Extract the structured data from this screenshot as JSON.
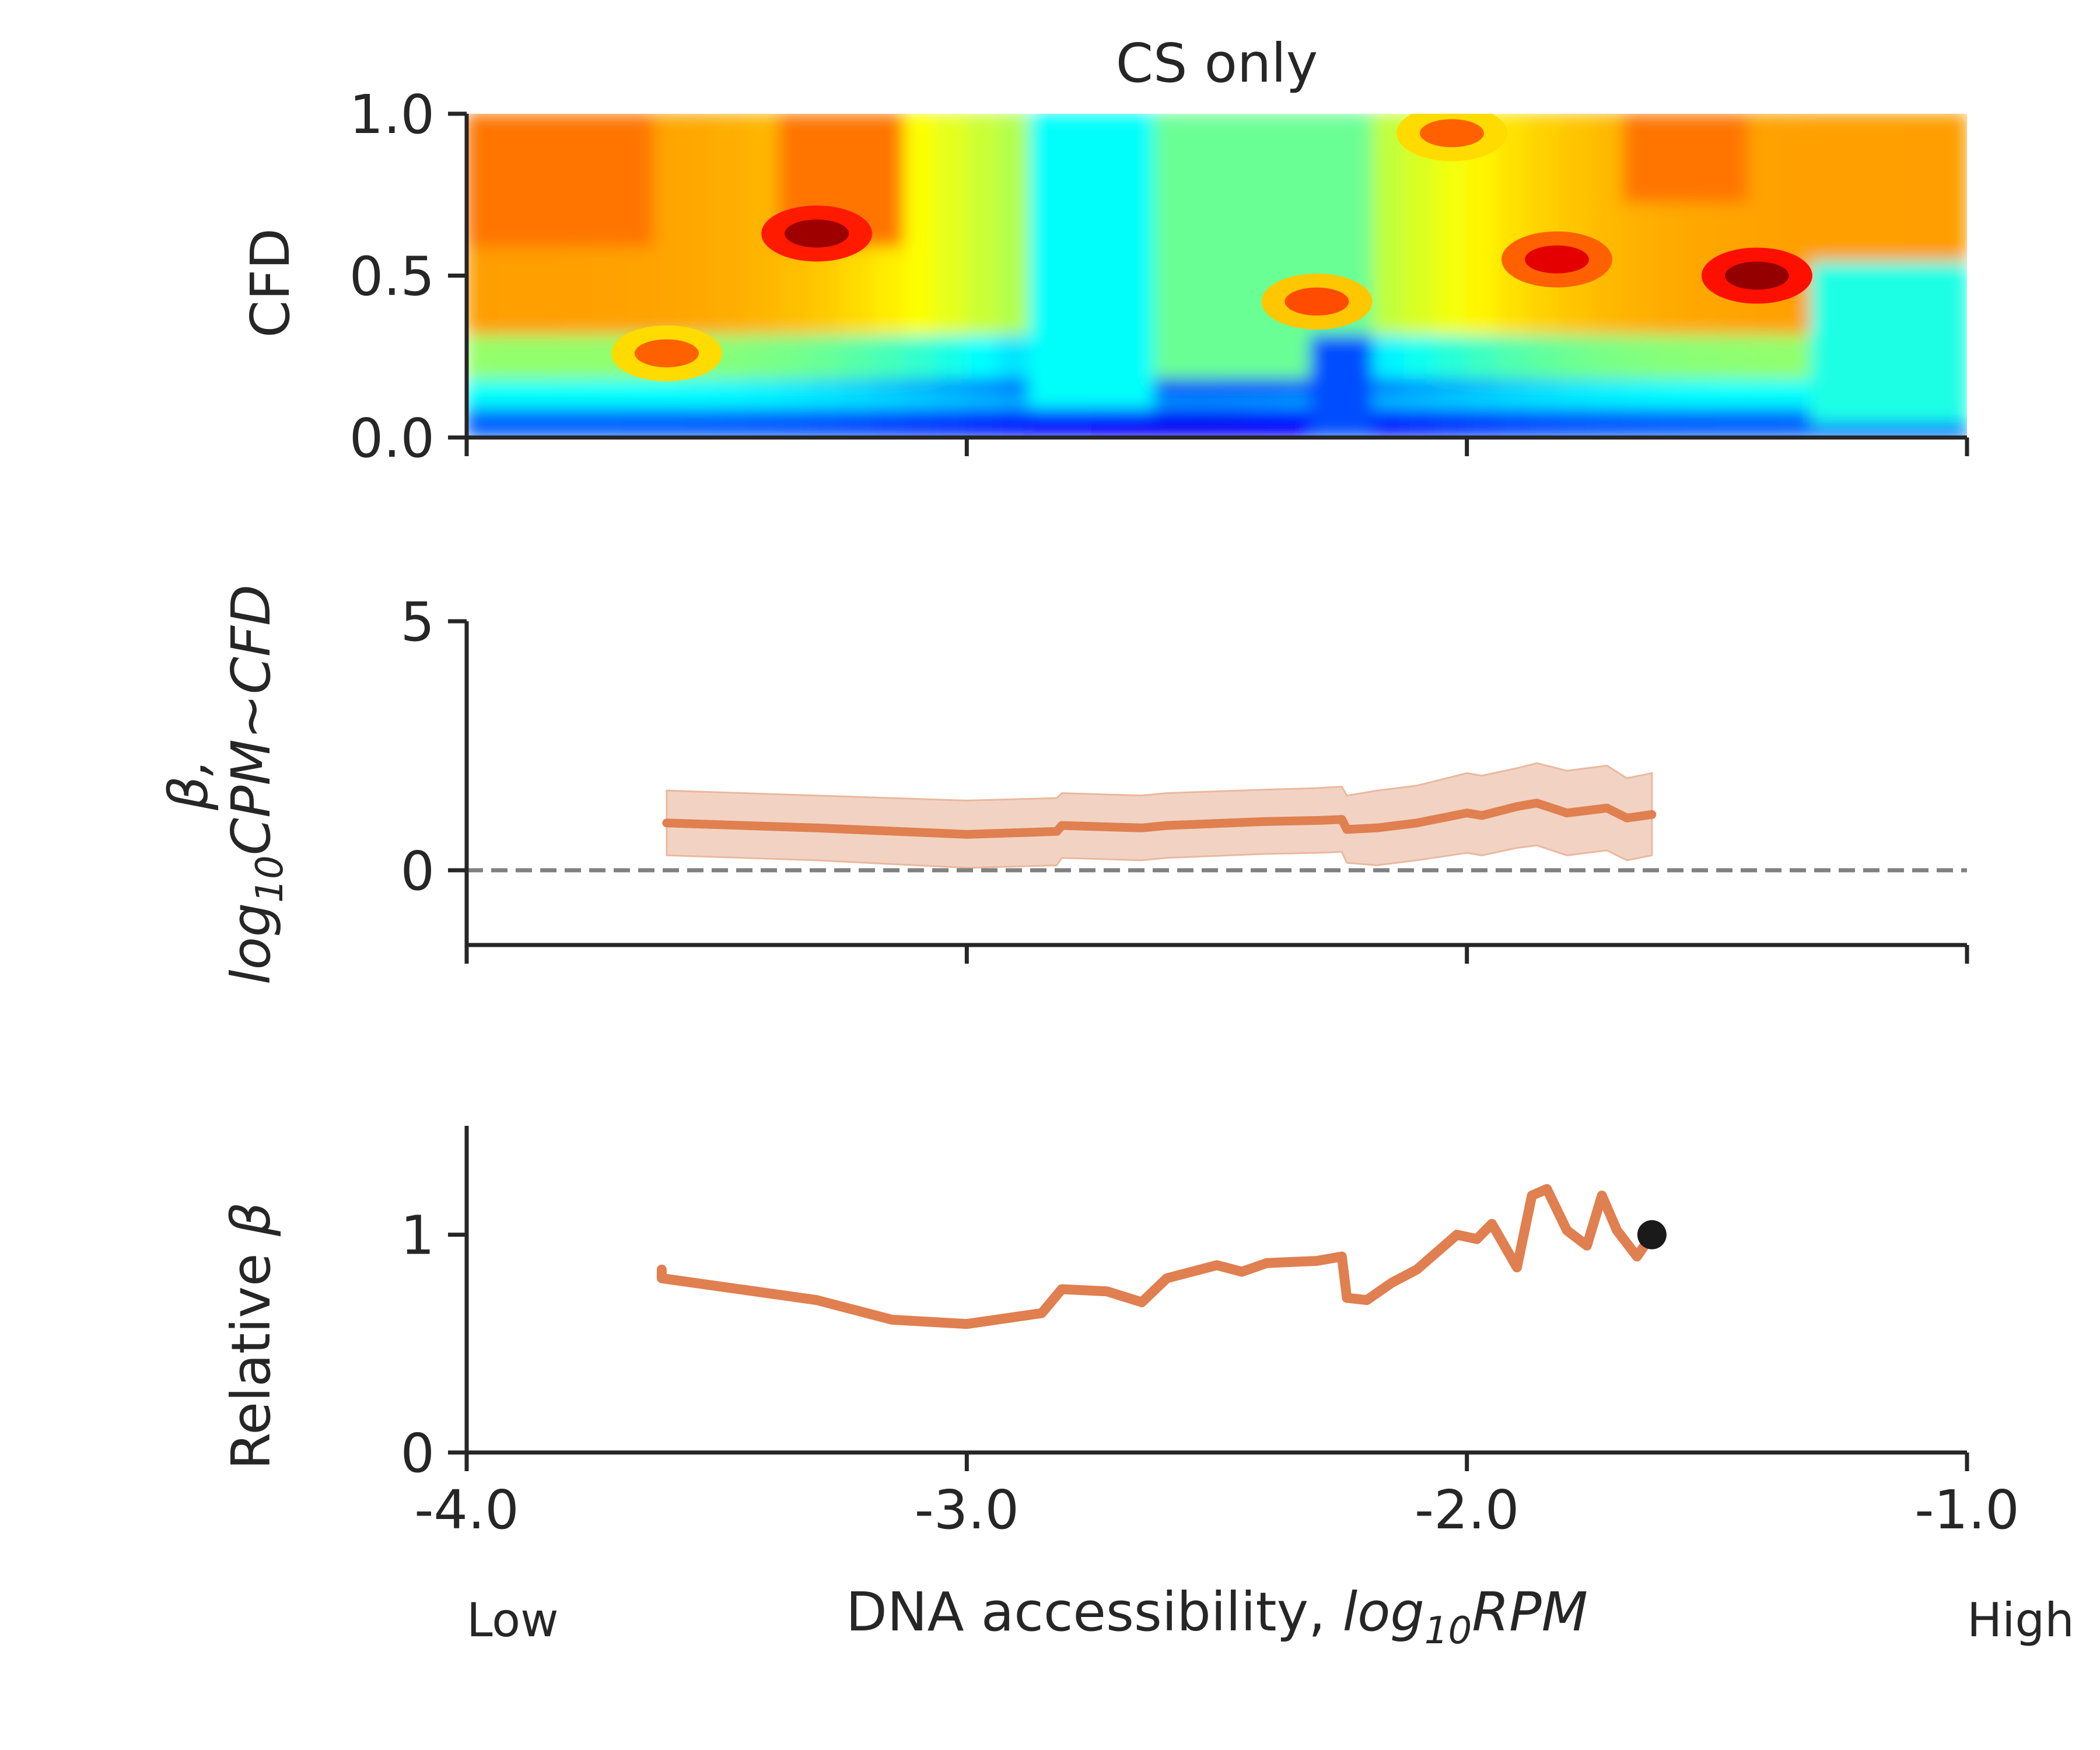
{
  "chart_data": [
    {
      "type": "heatmap",
      "title": "CS only",
      "ylabel": "CFD",
      "xlim": [
        -4.0,
        -1.0
      ],
      "ylim": [
        0.0,
        1.0
      ],
      "yticks": [
        "0.0",
        "0.5",
        "1.0"
      ],
      "colormap": "jet",
      "z_range": [
        0,
        1
      ],
      "hotspots": [
        {
          "x": -3.3,
          "y": 0.63,
          "z": 0.97
        },
        {
          "x": -2.3,
          "y": 0.42,
          "z": 0.8
        },
        {
          "x": -1.82,
          "y": 0.55,
          "z": 0.9
        },
        {
          "x": -1.42,
          "y": 0.5,
          "z": 0.98
        },
        {
          "x": -3.6,
          "y": 0.26,
          "z": 0.78
        },
        {
          "x": -2.03,
          "y": 0.94,
          "z": 0.78
        }
      ],
      "regions": [
        {
          "x": [
            -4.0,
            -3.6
          ],
          "y": [
            0.58,
            1.0
          ],
          "z": 0.76
        },
        {
          "x": [
            -3.4,
            -3.15
          ],
          "y": [
            0.58,
            1.0
          ],
          "z": 0.76
        },
        {
          "x": [
            -1.7,
            -1.45
          ],
          "y": [
            0.72,
            1.0
          ],
          "z": 0.76
        },
        {
          "x": [
            -2.65,
            -2.2
          ],
          "y": [
            0.2,
            1.0
          ],
          "z": 0.48
        },
        {
          "x": [
            -2.85,
            -2.65
          ],
          "y": [
            0.1,
            1.0
          ],
          "z": 0.38
        },
        {
          "x": [
            -1.3,
            -1.0
          ],
          "y": [
            0.05,
            0.55
          ],
          "z": 0.4
        },
        {
          "x": [
            -2.3,
            -2.2
          ],
          "y": [
            0.0,
            0.3
          ],
          "z": 0.2
        }
      ]
    },
    {
      "type": "line",
      "ylabel": "β, log10CPM~CFD",
      "ylabel_lines": [
        "β,",
        "log",
        "10",
        "CPM~CFD"
      ],
      "ylim": [
        -1.5,
        5
      ],
      "yticks": [
        "0",
        "5"
      ],
      "reference_line": {
        "y": 0,
        "style": "dashed",
        "color": "#808080"
      },
      "series": [
        {
          "color": "#e07f50",
          "band_color": "#f2d3c3",
          "x": [
            -3.6,
            -3.3,
            -3.0,
            -2.82,
            -2.81,
            -2.65,
            -2.6,
            -2.4,
            -2.3,
            -2.25,
            -2.24,
            -2.18,
            -2.1,
            -2.0,
            -1.97,
            -1.9,
            -1.86,
            -1.8,
            -1.76,
            -1.72,
            -1.68,
            -1.63
          ],
          "y": [
            0.95,
            0.85,
            0.72,
            0.78,
            0.9,
            0.85,
            0.9,
            0.98,
            1.0,
            1.02,
            0.82,
            0.85,
            0.95,
            1.15,
            1.1,
            1.28,
            1.35,
            1.15,
            1.2,
            1.25,
            1.05,
            1.12
          ],
          "lower": [
            0.3,
            0.2,
            0.05,
            0.1,
            0.25,
            0.2,
            0.25,
            0.33,
            0.35,
            0.37,
            0.15,
            0.1,
            0.2,
            0.35,
            0.3,
            0.45,
            0.5,
            0.3,
            0.35,
            0.4,
            0.2,
            0.3
          ],
          "upper": [
            1.6,
            1.5,
            1.4,
            1.45,
            1.55,
            1.5,
            1.55,
            1.62,
            1.65,
            1.68,
            1.5,
            1.6,
            1.7,
            1.95,
            1.9,
            2.05,
            2.15,
            2.0,
            2.05,
            2.1,
            1.85,
            1.95
          ]
        }
      ]
    },
    {
      "type": "line",
      "ylabel": "Relative β",
      "ylabel_parts": [
        "Relative ",
        "β"
      ],
      "xlabel": "DNA accessibility, log10RPM",
      "xlabel_parts": [
        "DNA accessibility, ",
        "log",
        "10",
        "RPM"
      ],
      "xlim": [
        -4.0,
        -1.0
      ],
      "ylim": [
        0,
        1.5
      ],
      "xticks": [
        "-4.0",
        "-3.0",
        "-2.0",
        "-1.0"
      ],
      "yticks": [
        "0",
        "1"
      ],
      "x_endpoint_labels": [
        "Low",
        "High"
      ],
      "series": [
        {
          "color": "#e07f50",
          "x": [
            -3.61,
            -3.61,
            -3.3,
            -3.15,
            -3.0,
            -2.85,
            -2.81,
            -2.72,
            -2.65,
            -2.6,
            -2.5,
            -2.45,
            -2.4,
            -2.3,
            -2.25,
            -2.24,
            -2.2,
            -2.15,
            -2.1,
            -2.02,
            -1.98,
            -1.95,
            -1.9,
            -1.87,
            -1.84,
            -1.8,
            -1.76,
            -1.73,
            -1.7,
            -1.66,
            -1.63
          ],
          "y": [
            0.84,
            0.8,
            0.7,
            0.61,
            0.59,
            0.64,
            0.75,
            0.74,
            0.69,
            0.8,
            0.86,
            0.83,
            0.87,
            0.88,
            0.9,
            0.71,
            0.7,
            0.78,
            0.84,
            1.0,
            0.98,
            1.05,
            0.85,
            1.18,
            1.21,
            1.02,
            0.95,
            1.18,
            1.02,
            0.9,
            1.0
          ]
        }
      ],
      "marker": {
        "x": -1.63,
        "y": 1.0,
        "color": "#1a1a1a"
      }
    }
  ]
}
